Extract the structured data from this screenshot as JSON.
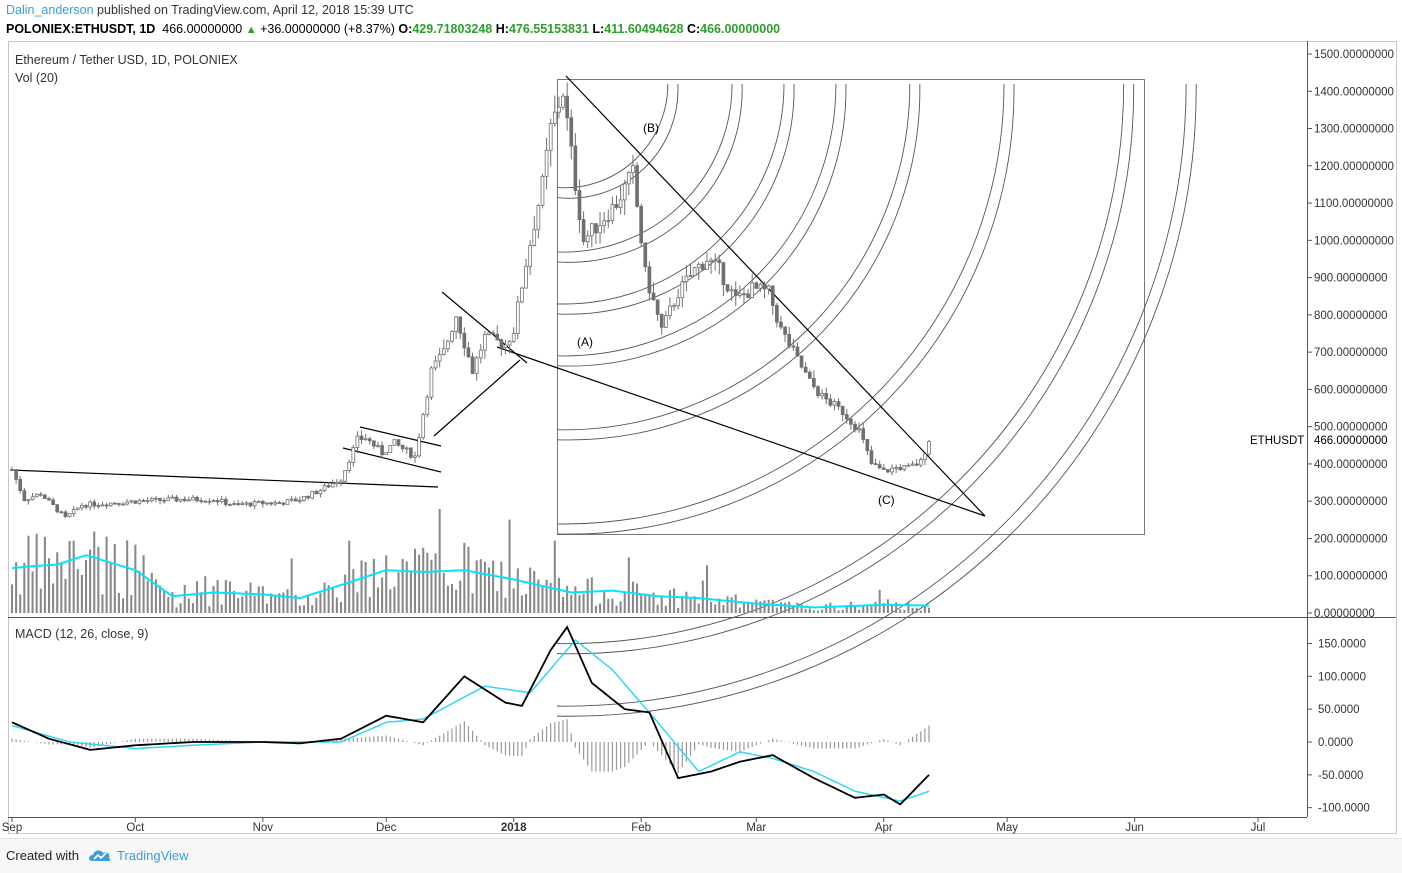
{
  "header": {
    "author": "Dalin_anderson",
    "published": "published on TradingView.com, April 12, 2018 15:39 UTC",
    "symbol": "POLONIEX:ETHUSDT, 1D",
    "last": "466.00000000",
    "change": "+36.00000000 (+8.37%)",
    "o_label": "O:",
    "o_value": "429.71803248",
    "h_label": "H:",
    "h_value": "476.55153831",
    "l_label": "L:",
    "l_value": "411.60494628",
    "c_label": "C:",
    "c_value": "466.00000000"
  },
  "panes": {
    "main_title": "Ethereum / Tether USD, 1D, POLONIEX",
    "volume_title": "Vol (20)",
    "macd_title": "MACD (12, 26, close, 9)",
    "price_tag_symbol": "ETHUSDT",
    "price_tag_value": "466.00000000"
  },
  "annotations": {
    "a": "(A)",
    "b": "(B)",
    "c": "(C)"
  },
  "colors": {
    "candle": "#808080",
    "volume_ma": "#00e5ff",
    "macd_line": "#000000",
    "signal_line": "#33d6f0",
    "histogram": "#999999",
    "drawing": "#000000",
    "arc": "#555555",
    "brand": "#3a9fd6"
  },
  "footer": {
    "created_with": "Created with",
    "brand": "TradingView",
    "logo_icon": "tradingview-cloud-icon"
  },
  "chart_data": [
    {
      "type": "candlestick",
      "title": "Ethereum / Tether USD, 1D, POLONIEX",
      "y_ticks": [
        "1500.00000000",
        "1400.00000000",
        "1300.00000000",
        "1200.00000000",
        "1100.00000000",
        "1000.00000000",
        "900.00000000",
        "800.00000000",
        "700.00000000",
        "600.00000000",
        "500.00000000",
        "400.00000000",
        "300.00000000",
        "200.00000000",
        "100.00000000",
        "0.00000000"
      ],
      "ylim": [
        0,
        1500
      ],
      "x_ticks": [
        "Sep",
        "Oct",
        "Nov",
        "Dec",
        "2018",
        "Feb",
        "Mar",
        "Apr",
        "May",
        "Jun",
        "Jul"
      ],
      "bold_x_ticks": [
        "2018"
      ],
      "x_range": [
        "2017-09-01",
        "2018-07-05"
      ],
      "price_series": {
        "name": "ETHUSDT",
        "anchors": [
          [
            "2017-09-01",
            385
          ],
          [
            "2017-09-04",
            305
          ],
          [
            "2017-09-08",
            320
          ],
          [
            "2017-09-14",
            255
          ],
          [
            "2017-09-18",
            290
          ],
          [
            "2017-09-25",
            295
          ],
          [
            "2017-10-01",
            300
          ],
          [
            "2017-10-12",
            305
          ],
          [
            "2017-10-20",
            305
          ],
          [
            "2017-10-25",
            290
          ],
          [
            "2017-11-01",
            295
          ],
          [
            "2017-11-05",
            295
          ],
          [
            "2017-11-10",
            305
          ],
          [
            "2017-11-15",
            330
          ],
          [
            "2017-11-20",
            360
          ],
          [
            "2017-11-24",
            465
          ],
          [
            "2017-11-26",
            470
          ],
          [
            "2017-11-30",
            430
          ],
          [
            "2017-12-03",
            455
          ],
          [
            "2017-12-08",
            420
          ],
          [
            "2017-12-12",
            650
          ],
          [
            "2017-12-15",
            700
          ],
          [
            "2017-12-18",
            800
          ],
          [
            "2017-12-22",
            650
          ],
          [
            "2017-12-25",
            740
          ],
          [
            "2017-12-30",
            720
          ],
          [
            "2018-01-01",
            760
          ],
          [
            "2018-01-04",
            940
          ],
          [
            "2018-01-08",
            1150
          ],
          [
            "2018-01-10",
            1300
          ],
          [
            "2018-01-13",
            1400
          ],
          [
            "2018-01-16",
            1150
          ],
          [
            "2018-01-18",
            1000
          ],
          [
            "2018-01-22",
            1050
          ],
          [
            "2018-01-26",
            1100
          ],
          [
            "2018-01-30",
            1180
          ],
          [
            "2018-02-02",
            910
          ],
          [
            "2018-02-06",
            760
          ],
          [
            "2018-02-10",
            860
          ],
          [
            "2018-02-14",
            920
          ],
          [
            "2018-02-17",
            950
          ],
          [
            "2018-02-20",
            920
          ],
          [
            "2018-02-24",
            840
          ],
          [
            "2018-02-28",
            870
          ],
          [
            "2018-03-04",
            860
          ],
          [
            "2018-03-07",
            760
          ],
          [
            "2018-03-10",
            700
          ],
          [
            "2018-03-14",
            620
          ],
          [
            "2018-03-17",
            580
          ],
          [
            "2018-03-22",
            540
          ],
          [
            "2018-03-26",
            490
          ],
          [
            "2018-03-29",
            400
          ],
          [
            "2018-04-01",
            380
          ],
          [
            "2018-04-04",
            390
          ],
          [
            "2018-04-07",
            390
          ],
          [
            "2018-04-10",
            405
          ],
          [
            "2018-04-12",
            466
          ]
        ]
      }
    },
    {
      "type": "bar",
      "title": "Vol (20)",
      "series": [
        {
          "name": "Vol (20)",
          "kind": "moving-average",
          "anchors": [
            [
              "2017-09-01",
              120
            ],
            [
              "2017-09-05",
              125
            ],
            [
              "2017-09-12",
              130
            ],
            [
              "2017-09-19",
              155
            ],
            [
              "2017-10-01",
              115
            ],
            [
              "2017-10-10",
              45
            ],
            [
              "2017-10-20",
              55
            ],
            [
              "2017-11-01",
              50
            ],
            [
              "2017-11-10",
              40
            ],
            [
              "2017-11-20",
              75
            ],
            [
              "2017-12-01",
              115
            ],
            [
              "2017-12-10",
              110
            ],
            [
              "2017-12-20",
              115
            ],
            [
              "2018-01-01",
              90
            ],
            [
              "2018-01-15",
              55
            ],
            [
              "2018-01-25",
              60
            ],
            [
              "2018-02-05",
              45
            ],
            [
              "2018-02-15",
              40
            ],
            [
              "2018-03-01",
              25
            ],
            [
              "2018-03-15",
              15
            ],
            [
              "2018-04-01",
              22
            ],
            [
              "2018-04-12",
              20
            ]
          ]
        }
      ]
    },
    {
      "type": "line",
      "title": "MACD (12, 26, close, 9)",
      "y_ticks": [
        "150.0000",
        "100.0000",
        "50.0000",
        "0.0000",
        "-50.0000",
        "-100.0000"
      ],
      "ylim": [
        -110,
        180
      ],
      "series": [
        {
          "name": "MACD",
          "anchors": [
            [
              "2017-09-01",
              30
            ],
            [
              "2017-09-10",
              5
            ],
            [
              "2017-09-20",
              -12
            ],
            [
              "2017-10-01",
              -5
            ],
            [
              "2017-10-15",
              0
            ],
            [
              "2017-11-01",
              0
            ],
            [
              "2017-11-10",
              -2
            ],
            [
              "2017-11-20",
              5
            ],
            [
              "2017-12-01",
              40
            ],
            [
              "2017-12-10",
              30
            ],
            [
              "2017-12-20",
              100
            ],
            [
              "2017-12-30",
              60
            ],
            [
              "2018-01-03",
              55
            ],
            [
              "2018-01-10",
              140
            ],
            [
              "2018-01-14",
              175
            ],
            [
              "2018-01-20",
              90
            ],
            [
              "2018-01-28",
              50
            ],
            [
              "2018-02-03",
              45
            ],
            [
              "2018-02-10",
              -55
            ],
            [
              "2018-02-18",
              -45
            ],
            [
              "2018-02-25",
              -30
            ],
            [
              "2018-03-05",
              -20
            ],
            [
              "2018-03-15",
              -55
            ],
            [
              "2018-03-25",
              -85
            ],
            [
              "2018-04-01",
              -80
            ],
            [
              "2018-04-05",
              -95
            ],
            [
              "2018-04-12",
              -50
            ]
          ]
        },
        {
          "name": "Signal",
          "anchors": [
            [
              "2017-09-01",
              25
            ],
            [
              "2017-09-15",
              0
            ],
            [
              "2017-10-01",
              -10
            ],
            [
              "2017-10-15",
              -5
            ],
            [
              "2017-11-01",
              0
            ],
            [
              "2017-11-20",
              0
            ],
            [
              "2017-12-01",
              30
            ],
            [
              "2017-12-10",
              35
            ],
            [
              "2017-12-25",
              85
            ],
            [
              "2018-01-05",
              75
            ],
            [
              "2018-01-16",
              155
            ],
            [
              "2018-01-25",
              110
            ],
            [
              "2018-02-05",
              30
            ],
            [
              "2018-02-15",
              -45
            ],
            [
              "2018-02-25",
              -15
            ],
            [
              "2018-03-05",
              -25
            ],
            [
              "2018-03-15",
              -45
            ],
            [
              "2018-03-25",
              -75
            ],
            [
              "2018-04-05",
              -90
            ],
            [
              "2018-04-12",
              -75
            ]
          ]
        }
      ]
    }
  ]
}
